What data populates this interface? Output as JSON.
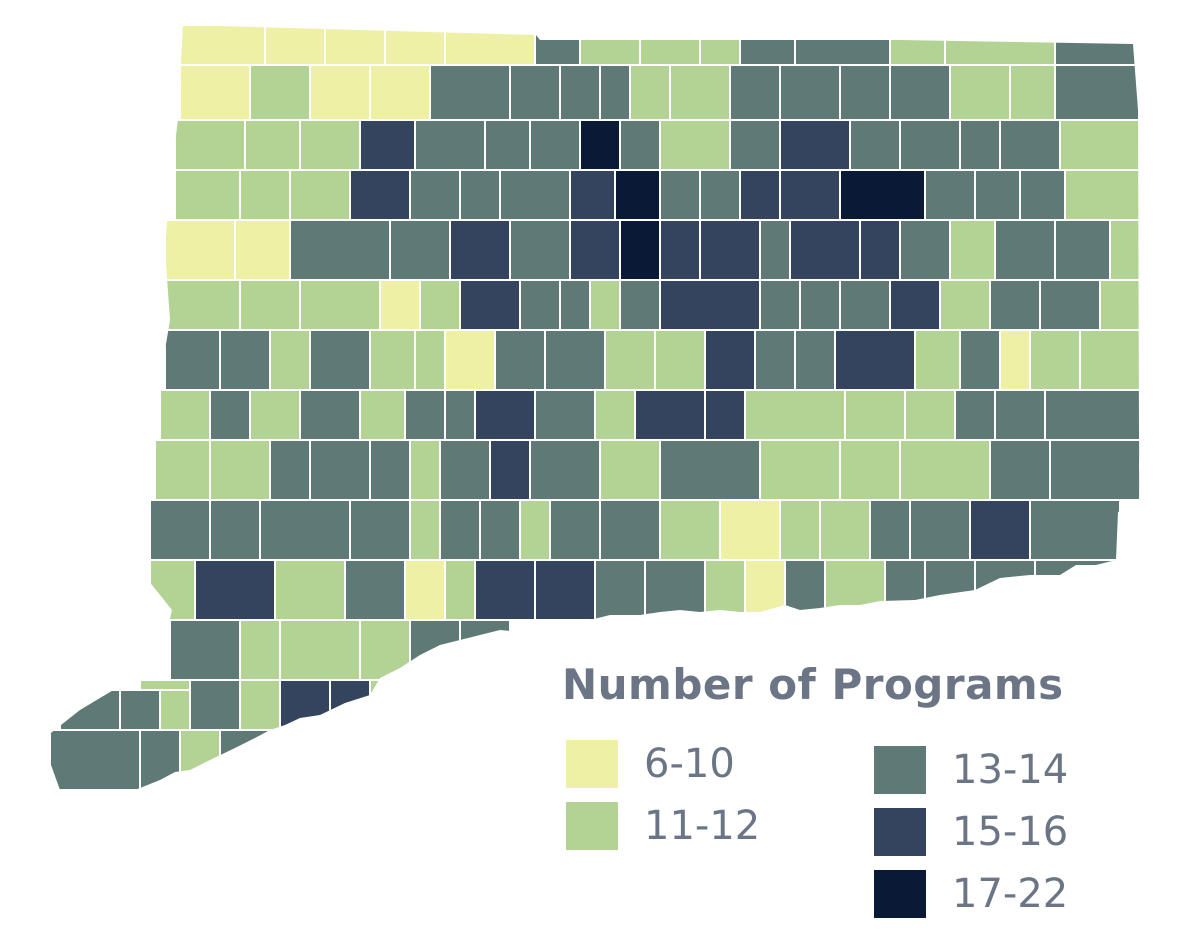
{
  "legend": {
    "title": "Number of Programs",
    "items": [
      {
        "label": "6-10",
        "color": "#eef0a6"
      },
      {
        "label": "11-12",
        "color": "#b3d395"
      },
      {
        "label": "13-14",
        "color": "#5f7a76"
      },
      {
        "label": "15-16",
        "color": "#34445e"
      },
      {
        "label": "17-22",
        "color": "#0a1a36"
      }
    ]
  },
  "map": {
    "region": "Connecticut towns",
    "border_color": "#ffffff"
  }
}
